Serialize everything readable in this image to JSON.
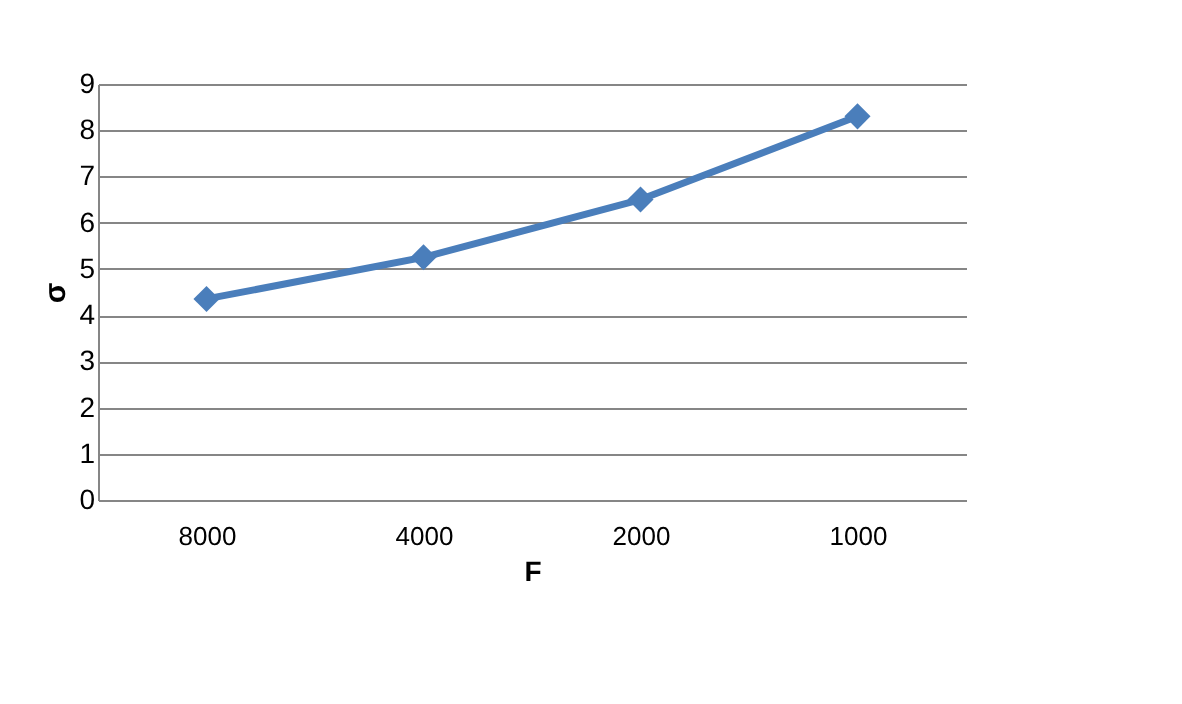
{
  "chart_data": {
    "type": "line",
    "xlabel": "F",
    "ylabel": "σ",
    "categories": [
      "8000",
      "4000",
      "2000",
      "1000"
    ],
    "series": [
      {
        "color": "#4a7ebb",
        "values": [
          4.35,
          5.25,
          6.5,
          8.3
        ]
      }
    ],
    "ylim": [
      0,
      9
    ],
    "yticks": [
      0,
      1,
      2,
      3,
      4,
      5,
      6,
      7,
      8,
      9
    ],
    "grid": "y",
    "marker": "diamond",
    "line_style": "solid"
  }
}
